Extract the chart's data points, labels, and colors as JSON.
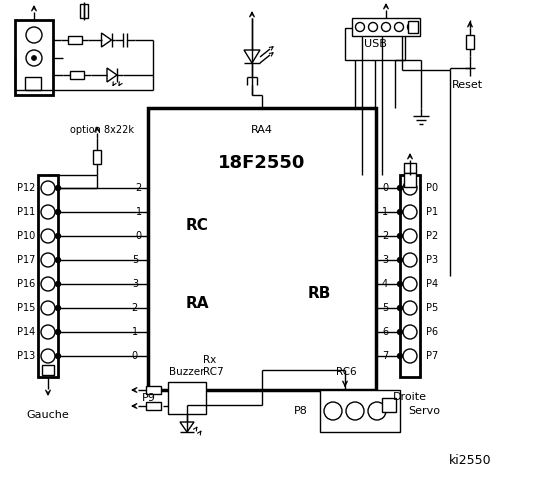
{
  "bg_color": "#ffffff",
  "fg_color": "#000000",
  "title": "ki2550",
  "chip_label": "18F2550",
  "chip_sublabel": "RA4",
  "rc_label": "RC",
  "ra_label": "RA",
  "rb_label": "RB",
  "rc7_label": "RC7",
  "rc6_label": "RC6",
  "rx_label": "Rx",
  "left_connector_pins": [
    "P12",
    "P11",
    "P10",
    "P17",
    "P16",
    "P15",
    "P14",
    "P13"
  ],
  "right_connector_pins": [
    "P0",
    "P1",
    "P2",
    "P3",
    "P4",
    "P5",
    "P6",
    "P7"
  ],
  "left_rc_pins": [
    "2",
    "1",
    "0"
  ],
  "left_ra_pins": [
    "5",
    "3",
    "2",
    "1",
    "0"
  ],
  "right_rb_pins": [
    "0",
    "1",
    "2",
    "3",
    "4",
    "5",
    "6",
    "7"
  ],
  "gauche_label": "Gauche",
  "droite_label": "Droite",
  "option_label": "option 8x22k",
  "usb_label": "USB",
  "reset_label": "Reset",
  "buzzer_label": "Buzzer",
  "servo_label": "Servo",
  "p8_label": "P8",
  "p9_label": "P9"
}
